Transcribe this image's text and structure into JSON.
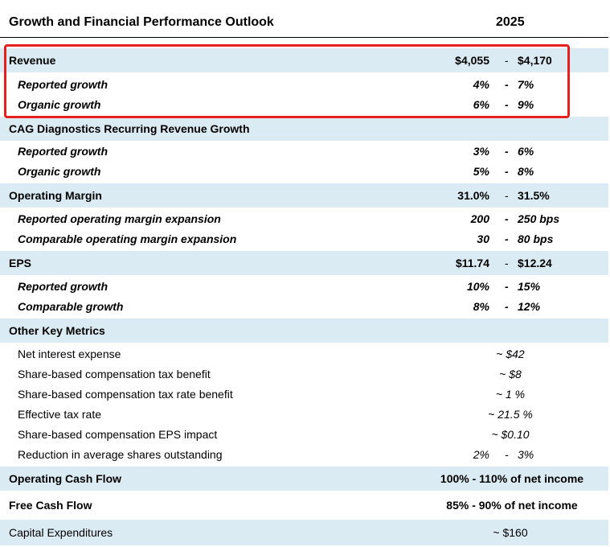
{
  "header": {
    "title": "Growth and Financial Performance Outlook",
    "year": "2025"
  },
  "revenue": {
    "label": "Revenue",
    "lo": "$4,055",
    "dash": "-",
    "hi": "$4,170",
    "reported": {
      "label": "Reported growth",
      "lo": "4%",
      "dash": "-",
      "hi": "7%"
    },
    "organic": {
      "label": "Organic growth",
      "lo": "6%",
      "dash": "-",
      "hi": "9%"
    }
  },
  "cag": {
    "label": "CAG Diagnostics Recurring Revenue Growth",
    "reported": {
      "label": "Reported growth",
      "lo": "3%",
      "dash": "-",
      "hi": "6%"
    },
    "organic": {
      "label": "Organic growth",
      "lo": "5%",
      "dash": "-",
      "hi": "8%"
    }
  },
  "op_margin": {
    "label": "Operating Margin",
    "lo": "31.0%",
    "dash": "-",
    "hi": "31.5%",
    "reported": {
      "label": "Reported operating margin expansion",
      "lo": "200",
      "dash": "-",
      "hi": "250 bps"
    },
    "comparable": {
      "label": "Comparable operating margin expansion",
      "lo": "30",
      "dash": "-",
      "hi": "80 bps"
    }
  },
  "eps": {
    "label": "EPS",
    "lo": "$11.74",
    "dash": "-",
    "hi": "$12.24",
    "reported": {
      "label": "Reported growth",
      "lo": "10%",
      "dash": "-",
      "hi": "15%"
    },
    "comparable": {
      "label": "Comparable growth",
      "lo": "8%",
      "dash": "-",
      "hi": "12%"
    }
  },
  "other": {
    "label": "Other Key Metrics",
    "items": [
      {
        "label": "Net interest expense",
        "value": "~ $42"
      },
      {
        "label": "Share-based compensation tax benefit",
        "value": "~ $8"
      },
      {
        "label": "Share-based compensation tax rate benefit",
        "value": "~ 1 %"
      },
      {
        "label": "Effective tax rate",
        "value": "~ 21.5 %"
      },
      {
        "label": "Share-based compensation EPS impact",
        "value": "~ $0.10"
      }
    ],
    "shares": {
      "label": "Reduction in average shares outstanding",
      "lo": "2%",
      "dash": "-",
      "hi": "3%"
    }
  },
  "ocf": {
    "label": "Operating Cash Flow",
    "value": "100% - 110% of net income"
  },
  "fcf": {
    "label": "Free Cash Flow",
    "value": "85% - 90% of net income"
  },
  "capex": {
    "label": "Capital Expenditures",
    "value": "~ $160"
  },
  "colors": {
    "shade": "#dbebf3",
    "highlight": "#e8201d"
  }
}
